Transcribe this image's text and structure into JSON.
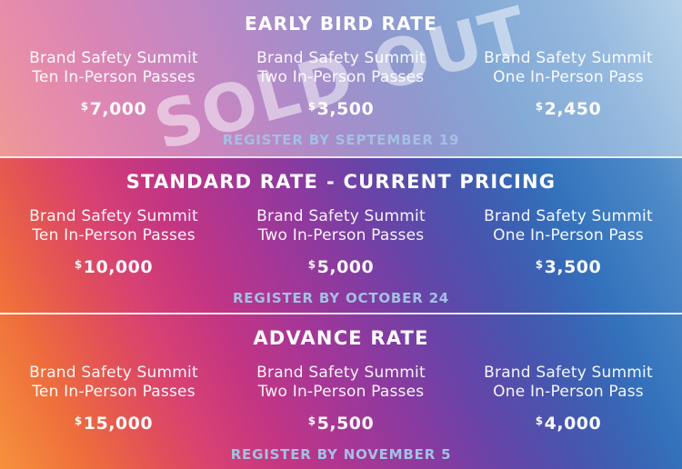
{
  "theme": {
    "text_color": "#ffffff",
    "register_color": "#a4c0e4",
    "watermark_color": "rgba(255,255,255,0.5)",
    "gradient_left_orange": "#f6913c",
    "gradient_pink": "#d84172",
    "gradient_purple": "#6744a8",
    "gradient_right_blue": "#3372bc",
    "gradient_corner_light_blue": "#85b4da"
  },
  "sections": [
    {
      "id": "early-bird",
      "title": "EARLY BIRD RATE",
      "title_bold": "",
      "sold_out": true,
      "watermark": "SOLD OUT",
      "register_deadline": "REGISTER BY SEPTEMBER 19",
      "offers": [
        {
          "line1": "Brand Safety Summit",
          "line2": "Ten In-Person Passes",
          "currency": "$",
          "price": "7,000"
        },
        {
          "line1": "Brand Safety Summit",
          "line2": "Two In-Person Passes",
          "currency": "$",
          "price": "3,500"
        },
        {
          "line1": "Brand Safety Summit",
          "line2": "One In-Person Pass",
          "currency": "$",
          "price": "2,450"
        }
      ]
    },
    {
      "id": "standard",
      "title": "STANDARD RATE",
      "title_bold": "- CURRENT PRICING",
      "sold_out": false,
      "watermark": "",
      "register_deadline": "REGISTER BY OCTOBER 24",
      "offers": [
        {
          "line1": "Brand Safety Summit",
          "line2": "Ten In-Person Passes",
          "currency": "$",
          "price": "10,000"
        },
        {
          "line1": "Brand Safety Summit",
          "line2": "Two In-Person Passes",
          "currency": "$",
          "price": "5,000"
        },
        {
          "line1": "Brand Safety Summit",
          "line2": "One In-Person Pass",
          "currency": "$",
          "price": "3,500"
        }
      ]
    },
    {
      "id": "advance",
      "title": "ADVANCE RATE",
      "title_bold": "",
      "sold_out": false,
      "watermark": "",
      "register_deadline": "REGISTER BY NOVEMBER 5",
      "offers": [
        {
          "line1": "Brand Safety Summit",
          "line2": "Ten In-Person Passes",
          "currency": "$",
          "price": "15,000"
        },
        {
          "line1": "Brand Safety Summit",
          "line2": "Two In-Person Passes",
          "currency": "$",
          "price": "5,500"
        },
        {
          "line1": "Brand Safety Summit",
          "line2": "One In-Person Pass",
          "currency": "$",
          "price": "4,000"
        }
      ]
    }
  ]
}
